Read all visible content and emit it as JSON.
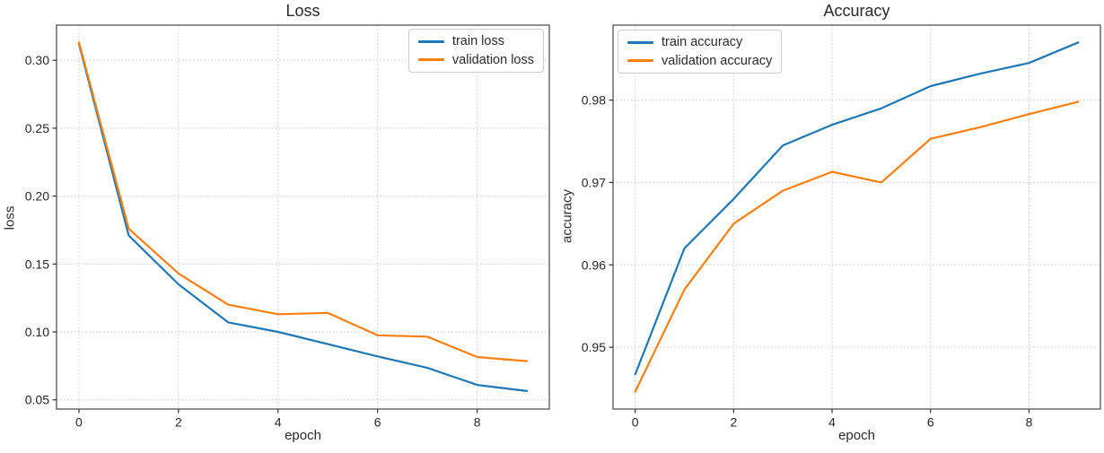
{
  "figure": {
    "background": "#ffffff"
  },
  "style": {
    "grid_color": "#c9c9c9",
    "spine_color": "#454545",
    "tick_color": "#333333",
    "text_color": "#2a2a2a",
    "legend_border": "#cccccc"
  },
  "chart_data": [
    {
      "type": "line",
      "title": "Loss",
      "xlabel": "epoch",
      "ylabel": "loss",
      "x": [
        0,
        1,
        2,
        3,
        4,
        5,
        6,
        7,
        8,
        9
      ],
      "series": [
        {
          "name": "train loss",
          "color": "#1f77b4",
          "values": [
            0.312,
            0.171,
            0.135,
            0.107,
            0.1,
            0.091,
            0.082,
            0.0735,
            0.061,
            0.0565
          ]
        },
        {
          "name": "validation loss",
          "color": "#ff7f0e",
          "values": [
            0.313,
            0.176,
            0.143,
            0.12,
            0.113,
            0.114,
            0.0975,
            0.0965,
            0.0815,
            0.0785
          ]
        }
      ],
      "xticks": [
        0,
        2,
        4,
        6,
        8
      ],
      "xtick_labels": [
        "0",
        "2",
        "4",
        "6",
        "8"
      ],
      "yticks": [
        0.05,
        0.1,
        0.15,
        0.2,
        0.25,
        0.3
      ],
      "ytick_labels": [
        "0.05",
        "0.10",
        "0.15",
        "0.20",
        "0.25",
        "0.30"
      ],
      "xlim": [
        -0.45,
        9.45
      ],
      "ylim": [
        0.0432,
        0.3259
      ],
      "grid": "dotted",
      "legend_position": "top-right"
    },
    {
      "type": "line",
      "title": "Accuracy",
      "xlabel": "epoch",
      "ylabel": "accuracy",
      "x": [
        0,
        1,
        2,
        3,
        4,
        5,
        6,
        7,
        8,
        9
      ],
      "series": [
        {
          "name": "train accuracy",
          "color": "#1f77b4",
          "values": [
            0.9467,
            0.962,
            0.968,
            0.9745,
            0.977,
            0.979,
            0.9817,
            0.9832,
            0.9845,
            0.987
          ]
        },
        {
          "name": "validation accuracy",
          "color": "#ff7f0e",
          "values": [
            0.9446,
            0.957,
            0.965,
            0.969,
            0.9713,
            0.97,
            0.9753,
            0.9767,
            0.9783,
            0.9798
          ]
        }
      ],
      "xticks": [
        0,
        2,
        4,
        6,
        8
      ],
      "xtick_labels": [
        "0",
        "2",
        "4",
        "6",
        "8"
      ],
      "yticks": [
        0.95,
        0.96,
        0.97,
        0.98
      ],
      "ytick_labels": [
        "0.95",
        "0.96",
        "0.97",
        "0.98"
      ],
      "xlim": [
        -0.45,
        9.45
      ],
      "ylim": [
        0.9425,
        0.9891
      ],
      "grid": "dotted",
      "legend_position": "top-left"
    }
  ]
}
